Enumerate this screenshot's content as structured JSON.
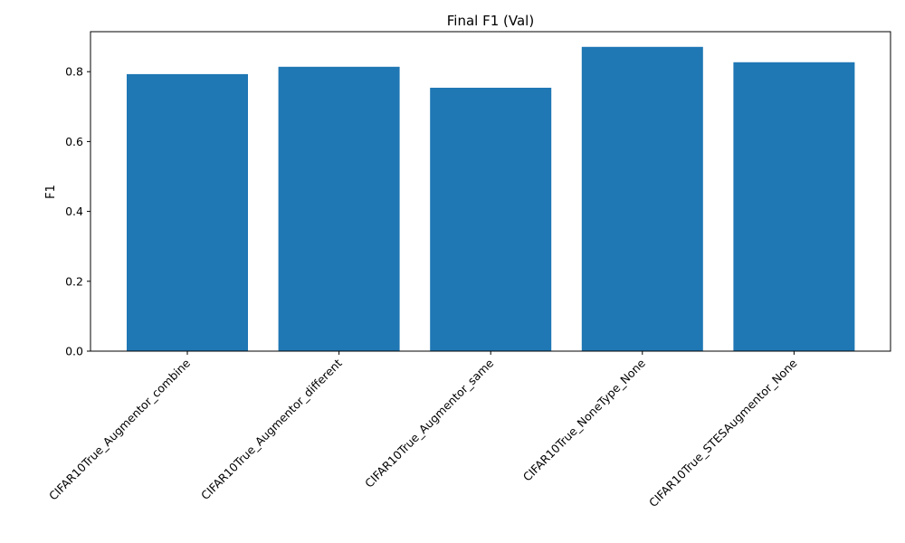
{
  "chart_data": {
    "type": "bar",
    "title": "Final F1 (Val)",
    "xlabel": "",
    "ylabel": "F1",
    "categories": [
      "CIFAR10True_Augmentor_combine",
      "CIFAR10True_Augmentor_different",
      "CIFAR10True_Augmentor_same",
      "CIFAR10True_NoneType_None",
      "CIFAR10True_STESAugmentor_None"
    ],
    "values": [
      0.793,
      0.814,
      0.754,
      0.871,
      0.827
    ],
    "ylim": [
      0,
      0.9145
    ],
    "yticks": [
      "0.0",
      "0.2",
      "0.4",
      "0.6",
      "0.8"
    ],
    "grid": false,
    "bar_color": "#1f77b4"
  }
}
